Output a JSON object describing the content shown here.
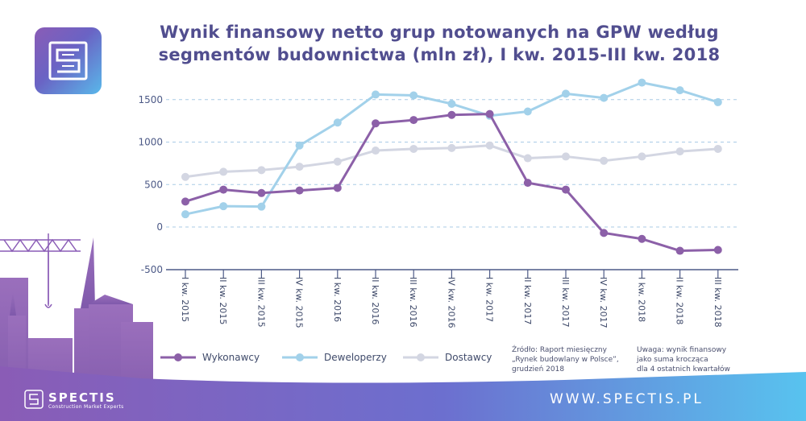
{
  "title_lines": [
    "Wynik finansowy netto grup notowanych na GPW według",
    "segmentów budownictwa (mln zł), I kw. 2015-III kw. 2018"
  ],
  "chart_data": {
    "type": "line",
    "title": "Wynik finansowy netto grup notowanych na GPW według segmentów budownictwa (mln zł), I kw. 2015-III kw. 2018",
    "categories": [
      "I kw. 2015",
      "II kw. 2015",
      "III kw. 2015",
      "IV kw. 2015",
      "I kw. 2016",
      "II kw. 2016",
      "III kw. 2016",
      "IV kw. 2016",
      "I kw. 2017",
      "II kw. 2017",
      "III kw. 2017",
      "IV kw. 2017",
      "I kw. 2018",
      "II kw. 2018",
      "III kw. 2018"
    ],
    "series": [
      {
        "name": "Wykonawcy",
        "color": "#8c60a8",
        "values": [
          300,
          440,
          400,
          430,
          460,
          1220,
          1260,
          1320,
          1330,
          520,
          440,
          -70,
          -140,
          -280,
          -270
        ]
      },
      {
        "name": "Deweloperzy",
        "color": "#a2d1ea",
        "values": [
          150,
          245,
          240,
          960,
          1230,
          1560,
          1550,
          1450,
          1310,
          1360,
          1570,
          1520,
          1700,
          1610,
          1470
        ]
      },
      {
        "name": "Dostawcy",
        "color": "#d3d6e2",
        "values": [
          590,
          650,
          670,
          710,
          770,
          900,
          920,
          930,
          960,
          810,
          830,
          780,
          830,
          890,
          920
        ]
      }
    ],
    "yticks": [
      1500,
      1000,
      500,
      0,
      -500
    ],
    "ylim": [
      -500,
      1700
    ],
    "grid": "horizontal dashed",
    "legend": "bottom"
  },
  "source_lines": [
    "Źródło: Raport miesięczny",
    "„Rynek budowlany w Polsce”,",
    "grudzień 2018"
  ],
  "remark_lines": [
    "Uwaga: wynik finansowy",
    "jako suma krocząca",
    "dla 4 ostatnich kwartałów"
  ],
  "brand": {
    "name": "SPECTIS",
    "tagline": "Construction Market Experts",
    "url": "WWW.SPECTIS.PL"
  },
  "colors": {
    "title": "#514e8f",
    "axis": "#4d5a87",
    "grid": "#a9cbe6",
    "footer_start": "#8a5cb6",
    "footer_end": "#5cc0ee"
  }
}
